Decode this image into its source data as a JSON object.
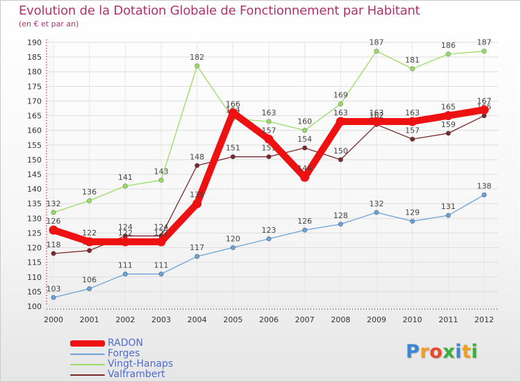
{
  "chart_data": {
    "type": "line",
    "title": "Evolution de la Dotation Globale de Fonctionnement par Habitant",
    "subtitle": "(en € et par an)",
    "xlabel": "",
    "ylabel": "",
    "x": [
      "2000",
      "2001",
      "2002",
      "2003",
      "2004",
      "2005",
      "2006",
      "2007",
      "2008",
      "2009",
      "2010",
      "2011",
      "2012"
    ],
    "ylim": [
      100,
      190
    ],
    "yticks": [
      "100",
      "105",
      "110",
      "115",
      "120",
      "125",
      "130",
      "135",
      "140",
      "145",
      "150",
      "155",
      "160",
      "165",
      "170",
      "175",
      "180",
      "185",
      "190"
    ],
    "grid": true,
    "legend_position": "bottom-left",
    "series": [
      {
        "name": "Vingt-Hanaps",
        "color": "#99dd66",
        "values": [
          132,
          136,
          141,
          143,
          182,
          164,
          163,
          160,
          169,
          187,
          181,
          186,
          187
        ],
        "labels": [
          "132",
          "136",
          "141",
          "143",
          "182",
          "164",
          "163",
          "160",
          "169",
          "187",
          "181",
          "186",
          "187"
        ]
      },
      {
        "name": "Forges",
        "color": "#6aa2d8",
        "values": [
          103,
          106,
          111,
          111,
          117,
          120,
          123,
          126,
          128,
          132,
          129,
          131,
          138
        ],
        "labels": [
          "103",
          "106",
          "111",
          "111",
          "117",
          "120",
          "123",
          "126",
          "128",
          "132",
          "129",
          "131",
          "138"
        ]
      },
      {
        "name": "Valframbert",
        "color": "#7a2a2a",
        "values": [
          118,
          119,
          124,
          124,
          148,
          151,
          151,
          154,
          150,
          162,
          157,
          159,
          165
        ],
        "labels": [
          "118",
          "119",
          "124",
          "124",
          "148",
          "151",
          "151",
          "154",
          "150",
          "162",
          "157",
          "159",
          "165"
        ]
      },
      {
        "name": "RADON",
        "color": "#ee1111",
        "values": [
          126,
          122,
          122,
          122,
          135,
          166,
          157,
          144,
          163,
          163,
          163,
          165,
          167
        ],
        "labels": [
          "126",
          "122",
          "122",
          "122",
          "135",
          "166",
          "157",
          "144",
          "163",
          "163",
          "163",
          "165",
          "167"
        ]
      }
    ]
  },
  "legend": {
    "items": [
      {
        "label": "RADON",
        "color": "#ee1111"
      },
      {
        "label": "Forges",
        "color": "#6aa2d8"
      },
      {
        "label": "Vingt-Hanaps",
        "color": "#99dd66"
      },
      {
        "label": "Valframbert",
        "color": "#7a2a2a"
      }
    ]
  },
  "logo": {
    "letters": [
      "P",
      "r",
      "o",
      "x",
      "i",
      "t",
      "i"
    ],
    "colors": [
      "#3a86d6",
      "#f0a020",
      "#e94b2e",
      "#3cae3c",
      "#3a86d6",
      "#f0a020",
      "#3cae3c"
    ]
  }
}
